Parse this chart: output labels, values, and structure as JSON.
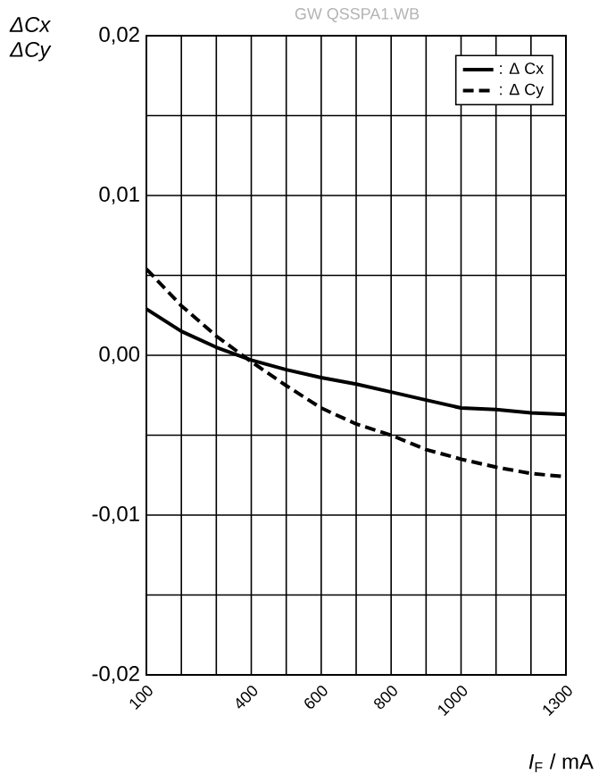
{
  "chart_data": {
    "type": "line",
    "xlabel": "*I*$_{F}$ / mA",
    "ylabel": "ΔCx ΔCy",
    "annotations": [
      "GW QSSPA1.WB"
    ],
    "x": [
      100,
      200,
      300,
      400,
      500,
      600,
      700,
      800,
      900,
      1000,
      1100,
      1200,
      1300
    ],
    "series": [
      {
        "name": ": Δ Cx",
        "color": "#000000",
        "line_style": "solid",
        "values": [
          0.0029,
          0.0015,
          0.0005,
          -0.0003,
          -0.0009,
          -0.0014,
          -0.0018,
          -0.0023,
          -0.0028,
          -0.0033,
          -0.0034,
          -0.0036,
          -0.0037
        ]
      },
      {
        "name": ": Δ Cy",
        "color": "#000000",
        "line_style": "dashed",
        "values": [
          0.0054,
          0.0031,
          0.0012,
          -0.0004,
          -0.0019,
          -0.0033,
          -0.0043,
          -0.005,
          -0.0059,
          -0.0065,
          -0.007,
          -0.0074,
          -0.0076
        ]
      }
    ],
    "xlim": [
      100,
      1300
    ],
    "xticks": [
      100,
      {
        "value": 200,
        "label": null
      },
      {
        "value": 300,
        "label": null
      },
      400,
      {
        "value": 500,
        "label": null
      },
      600,
      {
        "value": 700,
        "label": null
      },
      800,
      {
        "value": 900,
        "label": null
      },
      1000,
      {
        "value": 1100,
        "label": null
      },
      {
        "value": 1200,
        "label": null
      },
      1300
    ],
    "ylim": [
      -0.02,
      0.02
    ],
    "yticks": [
      {
        "value": -0.02,
        "label": "-0,02"
      },
      {
        "value": -0.015,
        "label": null
      },
      {
        "value": -0.01,
        "label": "-0,01"
      },
      {
        "value": -0.005,
        "label": null
      },
      {
        "value": 0,
        "label": "0,00"
      },
      {
        "value": 0.005,
        "label": null
      },
      {
        "value": 0.01,
        "label": "0,01"
      },
      {
        "value": 0.015,
        "label": null
      },
      {
        "value": 0.02,
        "label": "0,02"
      }
    ],
    "grid": true,
    "legend": "top right",
    "marker": "none"
  }
}
